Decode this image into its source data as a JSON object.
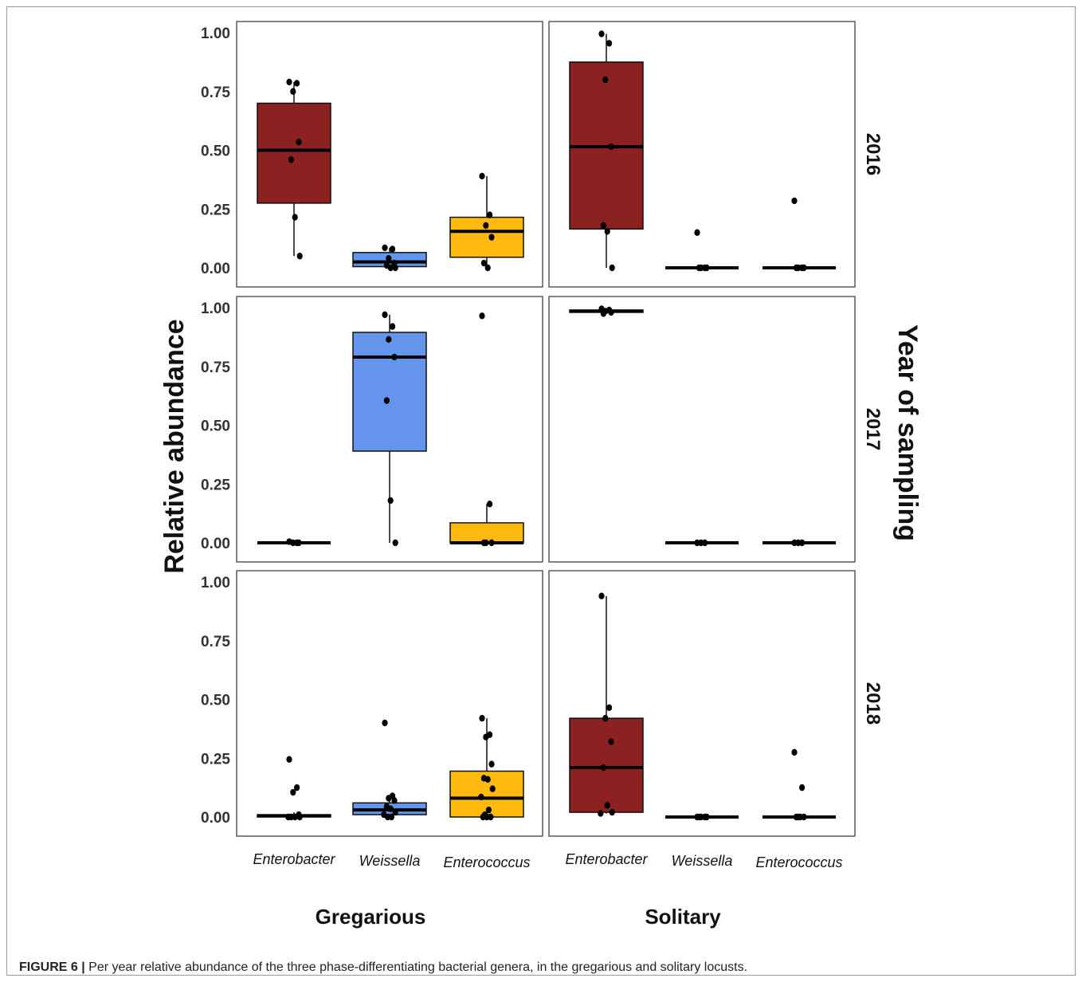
{
  "figure": {
    "caption_label": "FIGURE 6 |",
    "caption_text": " Per year relative abundance of the three phase-differentiating bacterial genera, in the gregarious and solitary locusts."
  },
  "chart_data": {
    "type": "box",
    "ylabel": "Relative abundance",
    "row_strip_title": "Year of sampling",
    "yticks": [
      "0.00",
      "0.25",
      "0.50",
      "0.75",
      "1.00"
    ],
    "ylim": [
      0,
      1
    ],
    "columns": [
      "Gregarious",
      "Solitary"
    ],
    "rows": [
      "2016",
      "2017",
      "2018"
    ],
    "categories": [
      "Enterobacter",
      "Weissella",
      "Enterococcus"
    ],
    "colors": {
      "Enterobacter": "#8b2121",
      "Weissella": "#6495ed",
      "Enterococcus": "#ffb90f"
    },
    "panels": [
      {
        "phase": "Gregarious",
        "year": "2016",
        "boxes": [
          {
            "category": "Enterobacter",
            "q1": 0.275,
            "median": 0.5,
            "q3": 0.7,
            "whisker_low": 0.05,
            "whisker_high": 0.79,
            "points": [
              0.79,
              0.785,
              0.75,
              0.535,
              0.46,
              0.215,
              0.05
            ]
          },
          {
            "category": "Weissella",
            "q1": 0.005,
            "median": 0.025,
            "q3": 0.065,
            "whisker_low": 0.0,
            "whisker_high": 0.085,
            "points": [
              0.085,
              0.08,
              0.04,
              0.02,
              0.01,
              0.0,
              0.0
            ]
          },
          {
            "category": "Enterococcus",
            "q1": 0.045,
            "median": 0.155,
            "q3": 0.215,
            "whisker_low": 0.0,
            "whisker_high": 0.39,
            "points": [
              0.39,
              0.225,
              0.18,
              0.13,
              0.02,
              0.0
            ]
          }
        ]
      },
      {
        "phase": "Solitary",
        "year": "2016",
        "boxes": [
          {
            "category": "Enterobacter",
            "q1": 0.165,
            "median": 0.515,
            "q3": 0.875,
            "whisker_low": 0.0,
            "whisker_high": 0.995,
            "points": [
              0.995,
              0.955,
              0.8,
              0.515,
              0.18,
              0.155,
              0.0
            ]
          },
          {
            "category": "Weissella",
            "q1": 0.0,
            "median": 0.0,
            "q3": 0.0,
            "whisker_low": 0.0,
            "whisker_high": 0.0,
            "points": [
              0.15,
              0.0,
              0.0,
              0.0,
              0.0
            ]
          },
          {
            "category": "Enterococcus",
            "q1": 0.0,
            "median": 0.0,
            "q3": 0.0,
            "whisker_low": 0.0,
            "whisker_high": 0.0,
            "points": [
              0.285,
              0.0,
              0.0,
              0.0,
              0.0
            ]
          }
        ]
      },
      {
        "phase": "Gregarious",
        "year": "2017",
        "boxes": [
          {
            "category": "Enterobacter",
            "q1": 0.0,
            "median": 0.0,
            "q3": 0.0,
            "whisker_low": 0.0,
            "whisker_high": 0.0,
            "points": [
              0.005,
              0.0,
              0.0,
              0.0
            ]
          },
          {
            "category": "Weissella",
            "q1": 0.39,
            "median": 0.79,
            "q3": 0.895,
            "whisker_low": 0.0,
            "whisker_high": 0.97,
            "points": [
              0.97,
              0.92,
              0.865,
              0.79,
              0.605,
              0.18,
              0.0
            ]
          },
          {
            "category": "Enterococcus",
            "q1": 0.0,
            "median": 0.0,
            "q3": 0.085,
            "whisker_low": 0.0,
            "whisker_high": 0.165,
            "points": [
              0.965,
              0.165,
              0.0,
              0.0,
              0.0
            ]
          }
        ]
      },
      {
        "phase": "Solitary",
        "year": "2017",
        "boxes": [
          {
            "category": "Enterobacter",
            "q1": 0.98,
            "median": 0.985,
            "q3": 0.99,
            "whisker_low": 0.975,
            "whisker_high": 0.995,
            "points": [
              0.995,
              0.99,
              0.985,
              0.98,
              0.975
            ]
          },
          {
            "category": "Weissella",
            "q1": 0.0,
            "median": 0.0,
            "q3": 0.0,
            "whisker_low": 0.0,
            "whisker_high": 0.0,
            "points": [
              0.0,
              0.0,
              0.0
            ]
          },
          {
            "category": "Enterococcus",
            "q1": 0.0,
            "median": 0.0,
            "q3": 0.0,
            "whisker_low": 0.0,
            "whisker_high": 0.0,
            "points": [
              0.0,
              0.0,
              0.0
            ]
          }
        ]
      },
      {
        "phase": "Gregarious",
        "year": "2018",
        "boxes": [
          {
            "category": "Enterobacter",
            "q1": 0.0,
            "median": 0.005,
            "q3": 0.01,
            "whisker_low": 0.0,
            "whisker_high": 0.02,
            "points": [
              0.245,
              0.125,
              0.105,
              0.01,
              0.0,
              0.0,
              0.0,
              0.0
            ]
          },
          {
            "category": "Weissella",
            "q1": 0.01,
            "median": 0.03,
            "q3": 0.06,
            "whisker_low": 0.0,
            "whisker_high": 0.09,
            "points": [
              0.4,
              0.09,
              0.08,
              0.07,
              0.045,
              0.035,
              0.02,
              0.01,
              0.0,
              0.0
            ]
          },
          {
            "category": "Enterococcus",
            "q1": 0.0,
            "median": 0.08,
            "q3": 0.195,
            "whisker_low": 0.0,
            "whisker_high": 0.42,
            "points": [
              0.42,
              0.35,
              0.34,
              0.225,
              0.165,
              0.16,
              0.12,
              0.085,
              0.03,
              0.01,
              0.0,
              0.0,
              0.0
            ]
          }
        ]
      },
      {
        "phase": "Solitary",
        "year": "2018",
        "boxes": [
          {
            "category": "Enterobacter",
            "q1": 0.02,
            "median": 0.21,
            "q3": 0.42,
            "whisker_low": 0.015,
            "whisker_high": 0.94,
            "points": [
              0.94,
              0.465,
              0.42,
              0.32,
              0.21,
              0.05,
              0.02,
              0.015
            ]
          },
          {
            "category": "Weissella",
            "q1": 0.0,
            "median": 0.0,
            "q3": 0.0,
            "whisker_low": 0.0,
            "whisker_high": 0.0,
            "points": [
              0.0,
              0.0,
              0.0,
              0.0,
              0.0
            ]
          },
          {
            "category": "Enterococcus",
            "q1": 0.0,
            "median": 0.0,
            "q3": 0.0,
            "whisker_low": 0.0,
            "whisker_high": 0.0,
            "points": [
              0.275,
              0.125,
              0.0,
              0.0,
              0.0,
              0.0
            ]
          }
        ]
      }
    ]
  }
}
